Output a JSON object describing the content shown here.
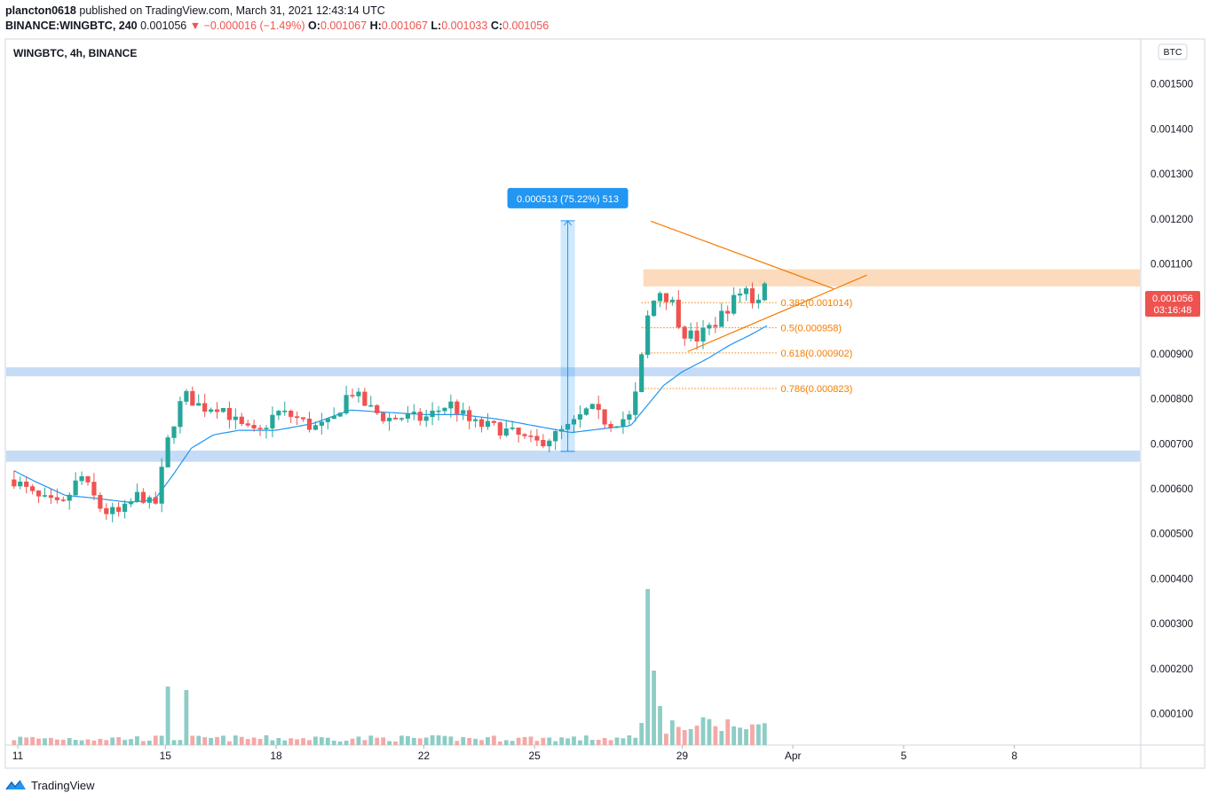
{
  "header": {
    "author": "plancton0618",
    "published_text": "published on TradingView.com, March 31, 2021 12:43:14 UTC",
    "symbol_line": "BINANCE:WINGBTC, 240",
    "last": "0.001056",
    "change": "▼ −0.000016 (−1.49%)",
    "o_label": "O:",
    "o": "0.001067",
    "h_label": "H:",
    "h": "0.001067",
    "l_label": "L:",
    "l": "0.001033",
    "c_label": "C:",
    "c": "0.001056"
  },
  "pane_title": "WINGBTC, 4h, BINANCE",
  "currency_badge": "BTC",
  "price_tag": {
    "price": "0.001056",
    "countdown": "03:16:48"
  },
  "footer": {
    "brand": "TradingView"
  },
  "colors": {
    "up": "#26a69a",
    "down": "#ef5350",
    "ema": "#2196f3",
    "fib": "#f57c00",
    "zone_blue": "#bbd5f5",
    "zone_orange": "#fbd3b0",
    "vol_up": "#8dcdc5",
    "vol_down": "#f4a9a7"
  },
  "chart_data": {
    "type": "candlestick",
    "y_axis": {
      "range": [
        3e-05,
        0.0016
      ],
      "ticks": [
        "0.000100",
        "0.000200",
        "0.000300",
        "0.000400",
        "0.000500",
        "0.000600",
        "0.000700",
        "0.000800",
        "0.000900",
        "0.001000",
        "0.001100",
        "0.001200",
        "0.001300",
        "0.001400",
        "0.001500"
      ]
    },
    "x_axis": {
      "range_days": [
        10.95,
        19.3
      ],
      "ticks": [
        {
          "day": 11,
          "label": "11"
        },
        {
          "day": 15,
          "label": "15"
        },
        {
          "day": 18,
          "label": "18"
        },
        {
          "day": 22,
          "label": "22"
        },
        {
          "day": 25,
          "label": "25"
        },
        {
          "day": 29,
          "label": "29"
        },
        {
          "day": 32,
          "label": "Apr"
        },
        {
          "day": 35,
          "label": "5"
        },
        {
          "day": 38,
          "label": "8"
        }
      ]
    },
    "note": "x values are days of March 2021 (32 = April 1)",
    "close_anchors": [
      [
        10.9,
        0.00062
      ],
      [
        11.5,
        0.00058
      ],
      [
        12.2,
        0.00056
      ],
      [
        12.7,
        0.00063
      ],
      [
        13.3,
        0.00055
      ],
      [
        13.8,
        0.000545
      ],
      [
        14.3,
        0.00059
      ],
      [
        14.7,
        0.000555
      ],
      [
        15.1,
        0.00072
      ],
      [
        15.5,
        0.00081
      ],
      [
        16.0,
        0.00078
      ],
      [
        16.5,
        0.000785
      ],
      [
        17.0,
        0.00074
      ],
      [
        17.5,
        0.00072
      ],
      [
        18.0,
        0.00077
      ],
      [
        18.5,
        0.00076
      ],
      [
        19.0,
        0.000735
      ],
      [
        19.5,
        0.000745
      ],
      [
        20.0,
        0.00082
      ],
      [
        20.5,
        0.00078
      ],
      [
        21.0,
        0.000755
      ],
      [
        21.5,
        0.00076
      ],
      [
        22.0,
        0.000755
      ],
      [
        22.7,
        0.00079
      ],
      [
        23.3,
        0.000745
      ],
      [
        24.0,
        0.000735
      ],
      [
        24.5,
        0.00072
      ],
      [
        25.0,
        0.0007
      ],
      [
        25.6,
        0.00072
      ],
      [
        26.0,
        0.00074
      ],
      [
        26.5,
        0.00078
      ],
      [
        27.0,
        0.000745
      ],
      [
        27.6,
        0.00076
      ],
      [
        27.85,
        0.00085
      ],
      [
        28.0,
        0.00097
      ],
      [
        28.3,
        0.001045
      ],
      [
        28.7,
        0.00102
      ],
      [
        29.0,
        0.00095
      ],
      [
        29.4,
        0.000935
      ],
      [
        29.9,
        0.00097
      ],
      [
        30.3,
        0.00101
      ],
      [
        30.7,
        0.00105
      ],
      [
        31.0,
        0.001005
      ],
      [
        31.25,
        0.00108
      ],
      [
        31.35,
        0.001056
      ]
    ],
    "ema_anchors": [
      [
        10.9,
        0.00064
      ],
      [
        11.5,
        0.000615
      ],
      [
        12.3,
        0.000585
      ],
      [
        13.0,
        0.00058
      ],
      [
        14.0,
        0.00057
      ],
      [
        14.7,
        0.000575
      ],
      [
        15.2,
        0.00063
      ],
      [
        15.7,
        0.00069
      ],
      [
        16.3,
        0.00072
      ],
      [
        17.0,
        0.00073
      ],
      [
        18.0,
        0.00073
      ],
      [
        19.0,
        0.000745
      ],
      [
        20.0,
        0.000775
      ],
      [
        21.0,
        0.00077
      ],
      [
        22.0,
        0.000765
      ],
      [
        23.0,
        0.000765
      ],
      [
        24.0,
        0.000755
      ],
      [
        25.0,
        0.00074
      ],
      [
        26.0,
        0.000725
      ],
      [
        27.0,
        0.000735
      ],
      [
        27.6,
        0.00074
      ],
      [
        28.0,
        0.00078
      ],
      [
        28.5,
        0.00083
      ],
      [
        29.0,
        0.00086
      ],
      [
        29.7,
        0.00089
      ],
      [
        30.3,
        0.00092
      ],
      [
        30.8,
        0.00094
      ],
      [
        31.35,
        0.000965
      ]
    ],
    "volume_scale_max": 0.0005,
    "volume_spikes": [
      [
        15.0,
        0.000165
      ],
      [
        15.5,
        0.000155
      ],
      [
        28.0,
        0.00016
      ],
      [
        28.15,
        0.00044
      ],
      [
        28.3,
        0.00021
      ],
      [
        28.45,
        0.00011
      ]
    ],
    "support_zones": [
      {
        "from": 0.00085,
        "to": 0.00087,
        "color": "#bbd5f5"
      },
      {
        "from": 0.00066,
        "to": 0.000685,
        "color": "#bbd5f5"
      },
      {
        "from": 0.00105,
        "to": 0.001088,
        "day_from": 27.95,
        "color": "#fbd3b0"
      }
    ],
    "fib_levels": [
      {
        "label": "0.382(0.001014)",
        "value": 0.001014,
        "day_from": 27.9,
        "day_to": 31.6
      },
      {
        "label": "0.5(0.000958)",
        "value": 0.000958,
        "day_from": 27.9,
        "day_to": 31.6
      },
      {
        "label": "0.618(0.000902)",
        "value": 0.000902,
        "day_from": 27.9,
        "day_to": 31.6
      },
      {
        "label": "0.786(0.000823)",
        "value": 0.000823,
        "day_from": 27.9,
        "day_to": 31.6
      }
    ],
    "triangle": {
      "upper": [
        [
          28.15,
          0.001195
        ],
        [
          33.1,
          0.001045
        ]
      ],
      "lower": [
        [
          29.15,
          0.000905
        ],
        [
          34.0,
          0.001075
        ]
      ]
    },
    "measure": {
      "day": 25.9,
      "from": 0.000683,
      "to": 0.001196,
      "label": "0.000513 (75.22%) 513"
    }
  }
}
